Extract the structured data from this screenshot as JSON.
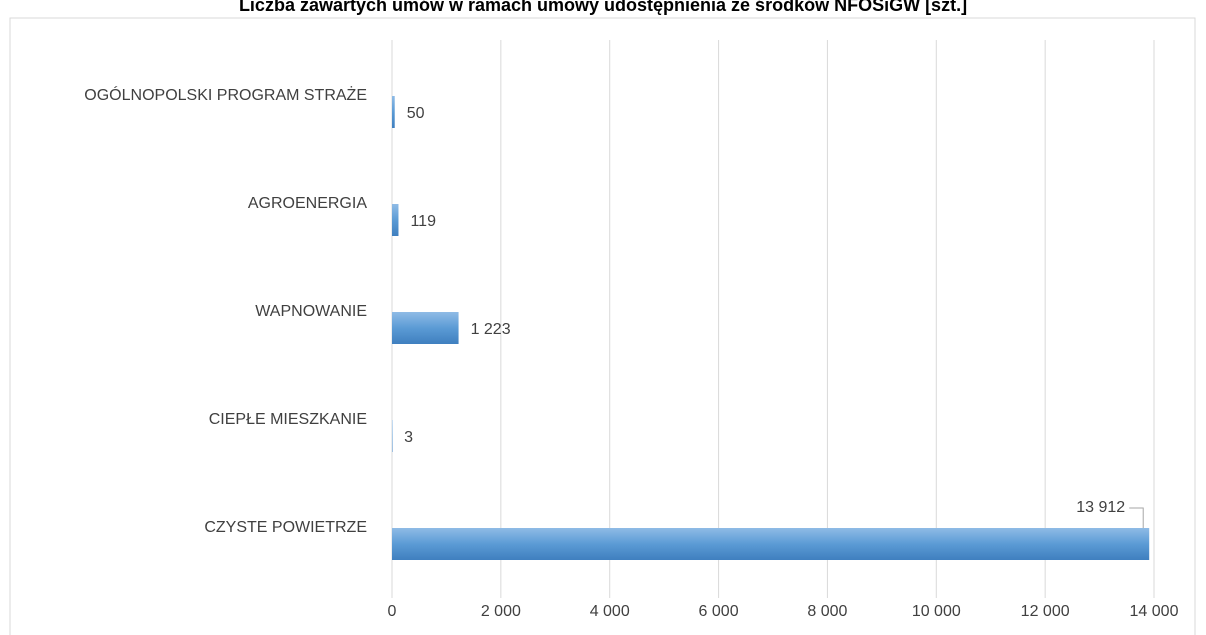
{
  "chart_data": {
    "type": "bar",
    "orientation": "horizontal",
    "title": "Liczba zawartych umów w ramach umowy udostępnienia ze środków NFOŚiGW [szt.]",
    "categories": [
      "OGÓLNOPOLSKI PROGRAM STRAŻE",
      "AGROENERGIA",
      "WAPNOWANIE",
      "CIEPŁE MIESZKANIE",
      "CZYSTE POWIETRZE"
    ],
    "values": [
      50,
      119,
      1223,
      3,
      13912
    ],
    "value_labels": [
      "50",
      "119",
      "1 223",
      "3",
      "13 912"
    ],
    "color": "#5b9bd5",
    "xlim": [
      0,
      14000
    ],
    "xticks": [
      0,
      {
        "value": 2000,
        "label": "2 000"
      },
      {
        "value": 4000,
        "label": "4 000"
      },
      {
        "value": 6000,
        "label": "6 000"
      },
      {
        "value": 8000,
        "label": "8 000"
      },
      {
        "value": 10000,
        "label": "10 000"
      },
      {
        "value": 12000,
        "label": "12 000"
      },
      {
        "value": 14000,
        "label": "14 000"
      }
    ],
    "grid": true
  }
}
